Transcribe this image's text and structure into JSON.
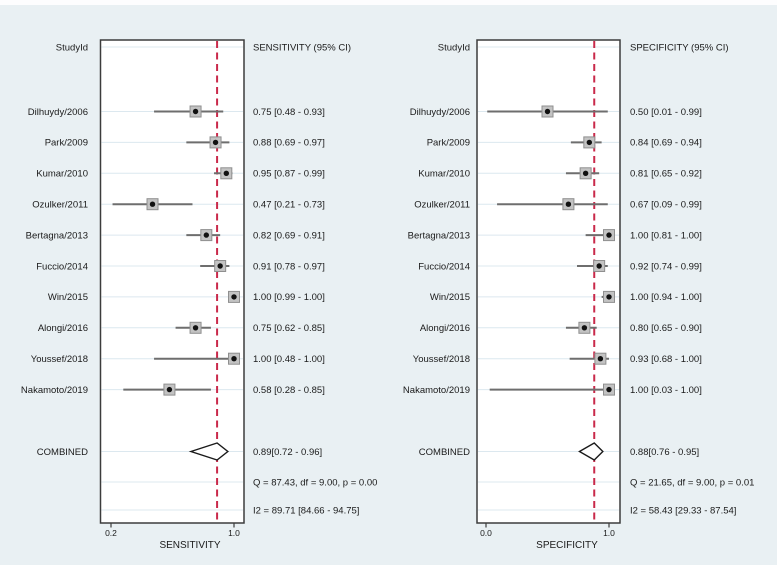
{
  "figure": {
    "background": "#e9f0f3",
    "ref_line_color": "#c9294a",
    "marker_fill": "#c3c3c3",
    "marker_stroke": "#8f8f8f",
    "dot_color": "#111111",
    "ci_line_color": "#6e6e6e",
    "box_stroke": "#3c3c3c",
    "grid_color": "#dce8ef",
    "diamond_fill": "#ffffff",
    "diamond_stroke": "#1a1a1a",
    "text_color": "#1a1a1a"
  },
  "chart_data": [
    {
      "type": "forest",
      "panel": "sensitivity",
      "header_study": "StudyId",
      "header_estimate": "SENSITIVITY (95% CI)",
      "xlabel": "SENSITIVITY",
      "x_axis_range": [
        0.155,
        1.065
      ],
      "x_ticks": [
        {
          "v": 0.2,
          "label": "0.2"
        },
        {
          "v": 1.0,
          "label": "1.0"
        }
      ],
      "ref_line_value": 0.89,
      "studies": [
        {
          "id": "Dilhuydy/2006",
          "est": 0.75,
          "lo": 0.48,
          "hi": 0.93,
          "label": "0.75 [0.48 - 0.93]"
        },
        {
          "id": "Park/2009",
          "est": 0.88,
          "lo": 0.69,
          "hi": 0.97,
          "label": "0.88 [0.69 - 0.97]"
        },
        {
          "id": "Kumar/2010",
          "est": 0.95,
          "lo": 0.87,
          "hi": 0.99,
          "label": "0.95 [0.87 - 0.99]"
        },
        {
          "id": "Ozulker/2011",
          "est": 0.47,
          "lo": 0.21,
          "hi": 0.73,
          "label": "0.47 [0.21 - 0.73]"
        },
        {
          "id": "Bertagna/2013",
          "est": 0.82,
          "lo": 0.69,
          "hi": 0.91,
          "label": "0.82 [0.69 - 0.91]"
        },
        {
          "id": "Fuccio/2014",
          "est": 0.91,
          "lo": 0.78,
          "hi": 0.97,
          "label": "0.91 [0.78 - 0.97]"
        },
        {
          "id": "Win/2015",
          "est": 1.0,
          "lo": 0.99,
          "hi": 1.0,
          "label": "1.00 [0.99 - 1.00]"
        },
        {
          "id": "Alongi/2016",
          "est": 0.75,
          "lo": 0.62,
          "hi": 0.85,
          "label": "0.75 [0.62 - 0.85]"
        },
        {
          "id": "Youssef/2018",
          "est": 1.0,
          "lo": 0.48,
          "hi": 1.0,
          "label": "1.00 [0.48 - 1.00]"
        },
        {
          "id": "Nakamoto/2019",
          "est": 0.58,
          "lo": 0.28,
          "hi": 0.85,
          "label": "0.58 [0.28 - 0.85]"
        }
      ],
      "combined": {
        "id": "COMBINED",
        "est": 0.89,
        "lo": 0.72,
        "hi": 0.96,
        "label": "0.89[0.72 - 0.96]"
      },
      "stats": [
        "Q = 87.43, df = 9.00, p = 0.00",
        "I2 = 89.71 [84.66 - 94.75]"
      ]
    },
    {
      "type": "forest",
      "panel": "specificity",
      "header_study": "StudyId",
      "header_estimate": "SPECIFICITY (95% CI)",
      "xlabel": "SPECIFICITY",
      "x_axis_range": [
        -0.07,
        1.09
      ],
      "x_ticks": [
        {
          "v": 0.0,
          "label": "0.0"
        },
        {
          "v": 1.0,
          "label": "1.0"
        }
      ],
      "ref_line_value": 0.88,
      "studies": [
        {
          "id": "Dilhuydy/2006",
          "est": 0.5,
          "lo": 0.01,
          "hi": 0.99,
          "label": "0.50 [0.01 - 0.99]"
        },
        {
          "id": "Park/2009",
          "est": 0.84,
          "lo": 0.69,
          "hi": 0.94,
          "label": "0.84 [0.69 - 0.94]"
        },
        {
          "id": "Kumar/2010",
          "est": 0.81,
          "lo": 0.65,
          "hi": 0.92,
          "label": "0.81 [0.65 - 0.92]"
        },
        {
          "id": "Ozulker/2011",
          "est": 0.67,
          "lo": 0.09,
          "hi": 0.99,
          "label": "0.67 [0.09 - 0.99]"
        },
        {
          "id": "Bertagna/2013",
          "est": 1.0,
          "lo": 0.81,
          "hi": 1.0,
          "label": "1.00 [0.81 - 1.00]"
        },
        {
          "id": "Fuccio/2014",
          "est": 0.92,
          "lo": 0.74,
          "hi": 0.99,
          "label": "0.92 [0.74 - 0.99]"
        },
        {
          "id": "Win/2015",
          "est": 1.0,
          "lo": 0.94,
          "hi": 1.0,
          "label": "1.00 [0.94 - 1.00]"
        },
        {
          "id": "Alongi/2016",
          "est": 0.8,
          "lo": 0.65,
          "hi": 0.9,
          "label": "0.80 [0.65 - 0.90]"
        },
        {
          "id": "Youssef/2018",
          "est": 0.93,
          "lo": 0.68,
          "hi": 1.0,
          "label": "0.93 [0.68 - 1.00]"
        },
        {
          "id": "Nakamoto/2019",
          "est": 1.0,
          "lo": 0.03,
          "hi": 1.0,
          "label": "1.00 [0.03 - 1.00]"
        }
      ],
      "combined": {
        "id": "COMBINED",
        "est": 0.88,
        "lo": 0.76,
        "hi": 0.95,
        "label": "0.88[0.76 - 0.95]"
      },
      "stats": [
        "Q = 21.65, df = 9.00, p = 0.01",
        "I2 = 58.43 [29.33 - 87.54]"
      ]
    }
  ]
}
